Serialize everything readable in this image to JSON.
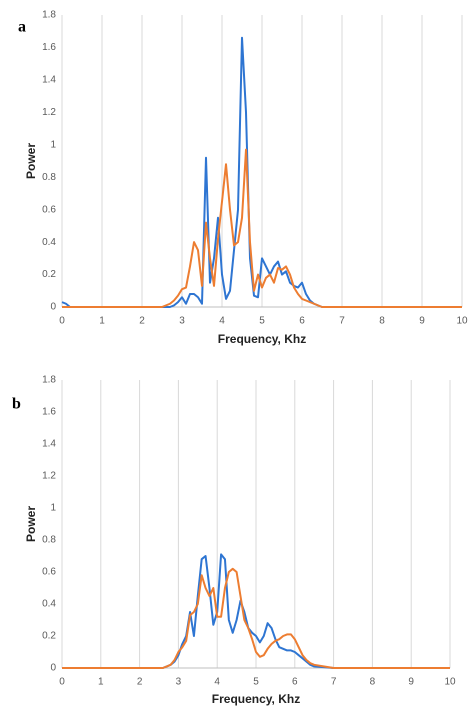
{
  "chart_data": [
    {
      "type": "line",
      "panel_label": "a",
      "x_label": "Frequency, Khz",
      "y_label": "Power",
      "xlim": [
        0,
        10
      ],
      "ylim": [
        0,
        1.8
      ],
      "xticks": [
        0,
        1,
        2,
        3,
        4,
        5,
        6,
        7,
        8,
        9,
        10
      ],
      "yticks": [
        0,
        0.2,
        0.4,
        0.6,
        0.8,
        1,
        1.2,
        1.4,
        1.6,
        1.8
      ],
      "grid": "x",
      "x": [
        0,
        0.1,
        0.2,
        0.5,
        1,
        1.5,
        2,
        2.5,
        2.6,
        2.7,
        2.8,
        2.9,
        3,
        3.1,
        3.2,
        3.3,
        3.4,
        3.5,
        3.6,
        3.7,
        3.8,
        3.9,
        4,
        4.1,
        4.2,
        4.3,
        4.4,
        4.5,
        4.6,
        4.7,
        4.8,
        4.9,
        5,
        5.1,
        5.2,
        5.3,
        5.4,
        5.5,
        5.6,
        5.7,
        5.8,
        5.9,
        6,
        6.1,
        6.2,
        6.3,
        6.4,
        6.5,
        7,
        8,
        9,
        10
      ],
      "series": [
        {
          "color": "#2e75d2",
          "values": [
            0.03,
            0.02,
            0,
            0,
            0,
            0,
            0,
            0,
            0,
            0,
            0.01,
            0.03,
            0.06,
            0.02,
            0.08,
            0.08,
            0.06,
            0.02,
            0.92,
            0.15,
            0.3,
            0.55,
            0.2,
            0.05,
            0.1,
            0.35,
            0.6,
            1.66,
            1.2,
            0.3,
            0.07,
            0.06,
            0.3,
            0.25,
            0.2,
            0.25,
            0.28,
            0.2,
            0.22,
            0.15,
            0.13,
            0.12,
            0.15,
            0.08,
            0.04,
            0.02,
            0.01,
            0,
            0,
            0,
            0,
            0
          ]
        },
        {
          "color": "#ed7d31",
          "values": [
            0,
            0,
            0,
            0,
            0,
            0,
            0,
            0,
            0.01,
            0.02,
            0.04,
            0.07,
            0.11,
            0.12,
            0.25,
            0.4,
            0.35,
            0.13,
            0.52,
            0.3,
            0.13,
            0.42,
            0.65,
            0.88,
            0.6,
            0.38,
            0.4,
            0.55,
            0.97,
            0.4,
            0.1,
            0.2,
            0.12,
            0.18,
            0.2,
            0.15,
            0.24,
            0.23,
            0.25,
            0.2,
            0.12,
            0.08,
            0.05,
            0.04,
            0.03,
            0.02,
            0.01,
            0,
            0,
            0,
            0,
            0
          ]
        }
      ]
    },
    {
      "type": "line",
      "panel_label": "b",
      "x_label": "Frequency, Khz",
      "y_label": "Power",
      "xlim": [
        0,
        10
      ],
      "ylim": [
        0,
        1.8
      ],
      "xticks": [
        0,
        1,
        2,
        3,
        4,
        5,
        6,
        7,
        8,
        9,
        10
      ],
      "yticks": [
        0,
        0.2,
        0.4,
        0.6,
        0.8,
        1,
        1.2,
        1.4,
        1.6,
        1.8
      ],
      "grid": "x",
      "x": [
        0,
        0.1,
        0.2,
        0.5,
        1,
        1.5,
        2,
        2.5,
        2.6,
        2.7,
        2.8,
        2.9,
        3,
        3.1,
        3.2,
        3.3,
        3.4,
        3.5,
        3.6,
        3.7,
        3.8,
        3.9,
        4,
        4.1,
        4.2,
        4.3,
        4.4,
        4.5,
        4.6,
        4.7,
        4.8,
        4.9,
        5,
        5.1,
        5.2,
        5.3,
        5.4,
        5.5,
        5.6,
        5.7,
        5.8,
        5.9,
        6,
        6.1,
        6.2,
        6.3,
        6.4,
        6.5,
        7,
        8,
        9,
        10
      ],
      "series": [
        {
          "color": "#2e75d2",
          "values": [
            0,
            0,
            0,
            0,
            0,
            0,
            0,
            0,
            0,
            0.01,
            0.02,
            0.04,
            0.08,
            0.15,
            0.2,
            0.35,
            0.2,
            0.45,
            0.68,
            0.7,
            0.5,
            0.27,
            0.35,
            0.71,
            0.68,
            0.3,
            0.22,
            0.3,
            0.42,
            0.35,
            0.25,
            0.22,
            0.2,
            0.16,
            0.2,
            0.28,
            0.25,
            0.18,
            0.13,
            0.12,
            0.11,
            0.11,
            0.1,
            0.08,
            0.06,
            0.04,
            0.02,
            0.01,
            0,
            0,
            0,
            0
          ]
        },
        {
          "color": "#ed7d31",
          "values": [
            0,
            0,
            0,
            0,
            0,
            0,
            0,
            0,
            0,
            0.01,
            0.02,
            0.05,
            0.1,
            0.13,
            0.17,
            0.33,
            0.35,
            0.4,
            0.58,
            0.5,
            0.45,
            0.5,
            0.32,
            0.32,
            0.5,
            0.6,
            0.62,
            0.6,
            0.45,
            0.3,
            0.25,
            0.18,
            0.1,
            0.07,
            0.08,
            0.12,
            0.15,
            0.17,
            0.18,
            0.2,
            0.21,
            0.21,
            0.18,
            0.13,
            0.08,
            0.05,
            0.03,
            0.02,
            0,
            0,
            0,
            0
          ]
        }
      ]
    }
  ]
}
